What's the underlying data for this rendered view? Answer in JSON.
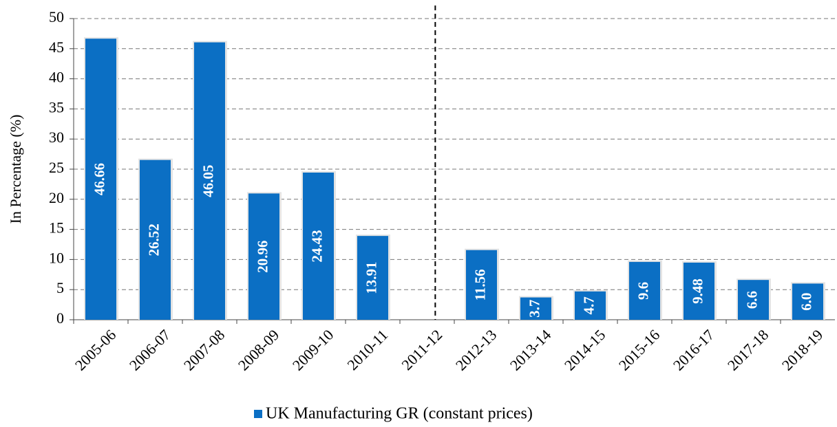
{
  "chart_data": {
    "type": "bar",
    "y_label": "In Percentage (%)",
    "categories": [
      "2005-06",
      "2006-07",
      "2007-08",
      "2008-09",
      "2009-10",
      "2010-11",
      "2011-12",
      "2012-13",
      "2013-14",
      "2014-15",
      "2015-16",
      "2016-17",
      "2017-18",
      "2018-19"
    ],
    "series": [
      {
        "name": "UK Manufacturing GR (constant prices)",
        "color": "#0b6fc4",
        "values": [
          46.66,
          26.52,
          46.05,
          20.96,
          24.43,
          13.91,
          null,
          11.56,
          3.7,
          4.7,
          9.6,
          9.48,
          6.6,
          6
        ],
        "value_labels": [
          "46.66",
          "26.52",
          "46.05",
          "20.96",
          "24.43",
          "13.91",
          null,
          "11.56",
          "3.7",
          "4.7",
          "9.6",
          "9.48",
          "6.6",
          "6.0"
        ]
      }
    ],
    "ylim": [
      0,
      50
    ],
    "yticks": [
      0,
      5,
      10,
      15,
      20,
      25,
      30,
      35,
      40,
      45,
      50
    ],
    "grid": true,
    "legend": "bottom"
  }
}
